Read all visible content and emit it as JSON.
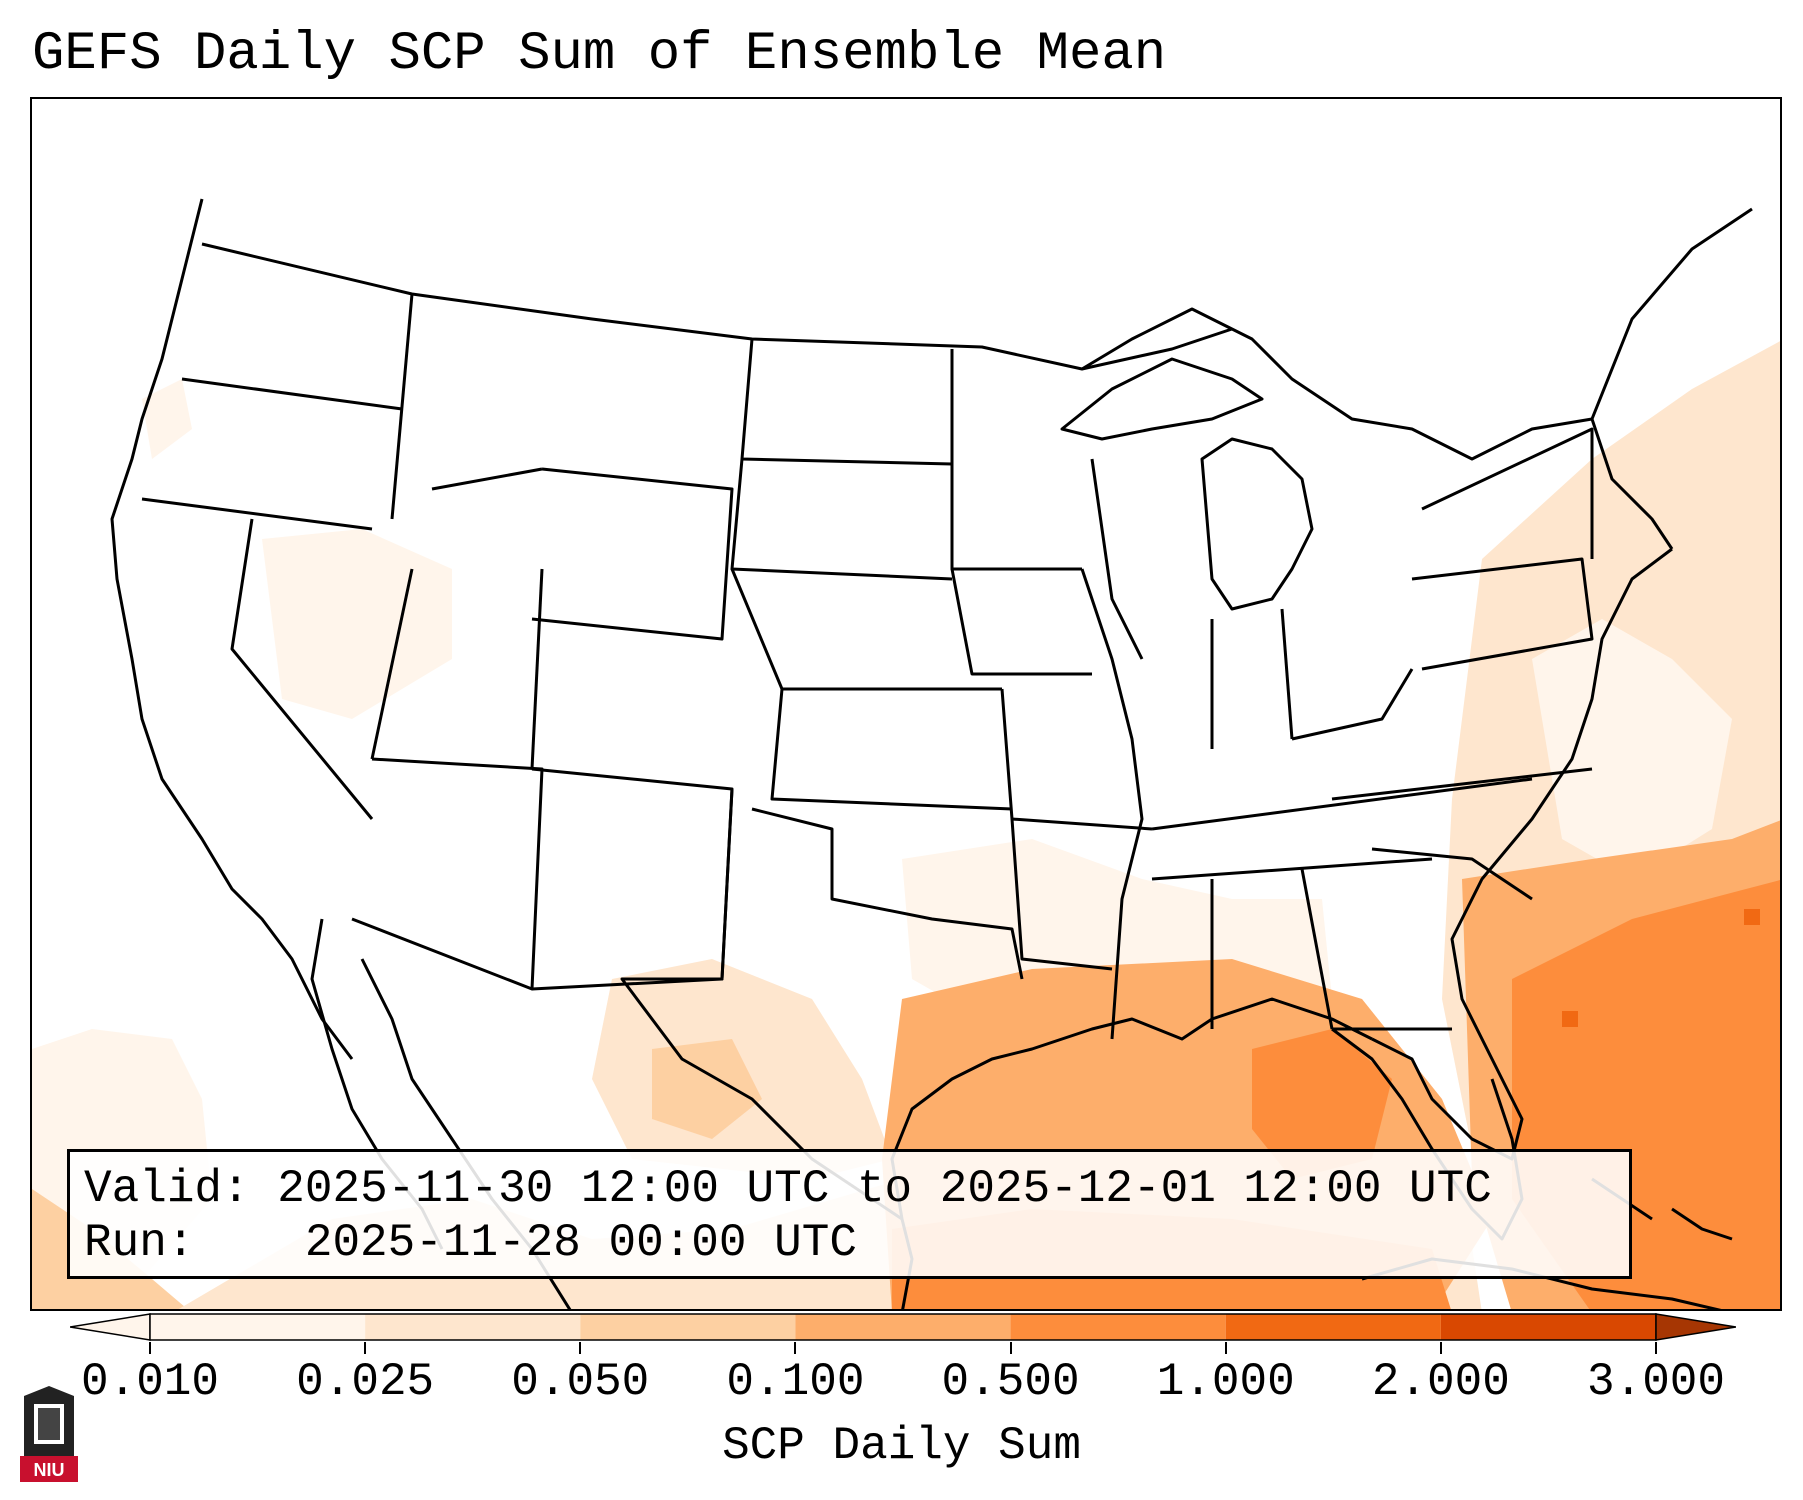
{
  "title": "GEFS Daily SCP Sum of Ensemble Mean",
  "info": {
    "valid_label": "Valid:",
    "valid_value": "2025-11-30 12:00 UTC to 2025-12-01 12:00 UTC",
    "run_label": "Run:",
    "run_value": "2025-11-28 00:00 UTC"
  },
  "colorbar": {
    "title": "SCP Daily Sum",
    "levels": [
      "0.010",
      "0.025",
      "0.050",
      "0.100",
      "0.500",
      "1.000",
      "2.000",
      "3.000"
    ],
    "colors": [
      "#fff5eb",
      "#fee6ce",
      "#fdd0a2",
      "#fdae6b",
      "#fd8d3c",
      "#f16913",
      "#d94801",
      "#a63603"
    ]
  },
  "logo": {
    "text": "NIU",
    "icon": "niu-logo-icon"
  },
  "map": {
    "region": "CONUS",
    "fill_colors": {
      "lightest": "#fff5eb",
      "light": "#fee6ce",
      "mid": "#fdd0a2",
      "orange": "#fdae6b",
      "dark": "#fd8d3c",
      "darker": "#f16913",
      "darkest": "#d94801"
    },
    "border_color": "#000000"
  }
}
